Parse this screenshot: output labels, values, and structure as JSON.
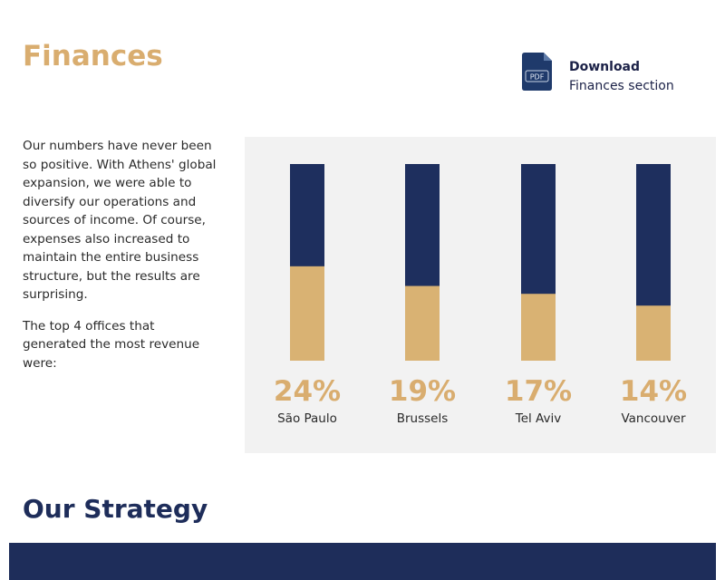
{
  "header": {
    "title": "Finances"
  },
  "download": {
    "title": "Download",
    "subtitle": "Finances section",
    "icon": "pdf-file-icon",
    "icon_label": "PDF"
  },
  "intro": {
    "paragraph1": "Our numbers have never been so positive. With Athens' global expansion, we were able to diversify our operations and sources of income. Of course, expenses also increased to maintain the entire business structure, but the results are surprising.",
    "paragraph2": "The top 4 offices that generated the most revenue were:"
  },
  "chart_data": {
    "type": "bar",
    "stacked": true,
    "categories": [
      "São Paulo",
      "Brussels",
      "Tel Aviv",
      "Vancouver"
    ],
    "values": [
      24,
      19,
      17,
      14
    ],
    "data_labels": [
      "24%",
      "19%",
      "17%",
      "14%"
    ],
    "ylim": [
      0,
      50
    ],
    "grid": false,
    "colors": {
      "value": "#d9b273",
      "remainder": "#1e2f5e"
    }
  },
  "strategy": {
    "title": "Our Strategy"
  },
  "colors": {
    "accent_gold": "#d9ad6f",
    "navy": "#1e2d5a",
    "panel_bg": "#f2f2f2"
  }
}
